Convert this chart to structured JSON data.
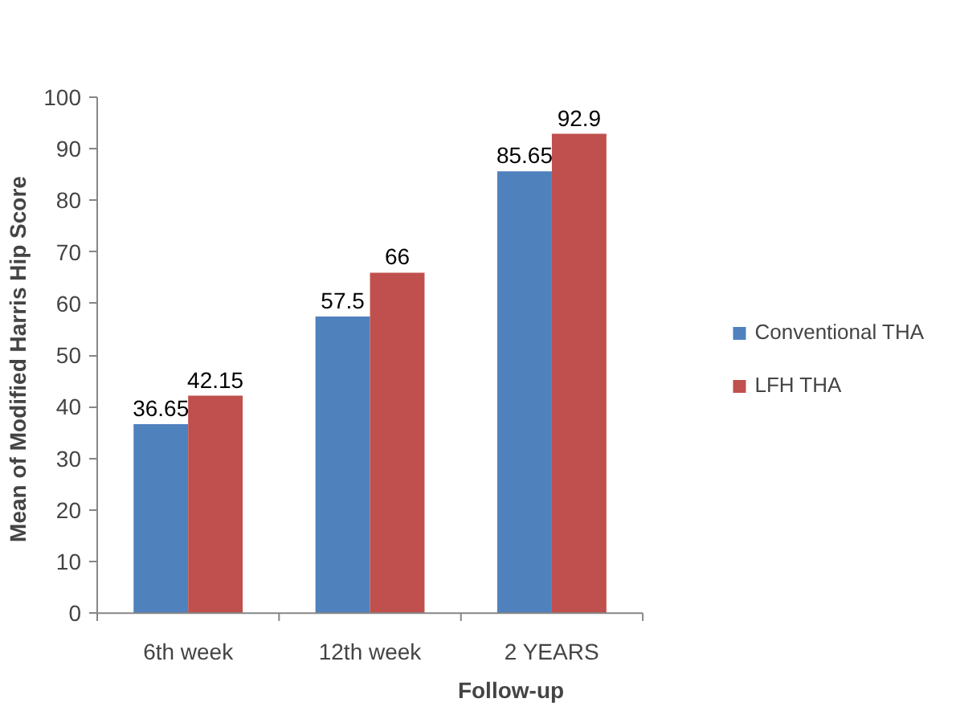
{
  "chart_data": {
    "type": "bar",
    "xlabel": "Follow-up",
    "ylabel": "Mean of Modified Harris Hip Score",
    "categories": [
      "6th week",
      "12th week",
      "2 YEARS"
    ],
    "series": [
      {
        "name": "Conventional THA",
        "color": "#4f81bd",
        "values": [
          36.65,
          57.5,
          85.65
        ]
      },
      {
        "name": "LFH THA",
        "color": "#c0504d",
        "values": [
          42.15,
          66,
          92.9
        ]
      }
    ],
    "ylim": [
      0,
      100
    ],
    "yticks": [
      0,
      10,
      20,
      30,
      40,
      50,
      60,
      70,
      80,
      90,
      100
    ],
    "grid": false,
    "legend": "right",
    "data_labels": true
  }
}
